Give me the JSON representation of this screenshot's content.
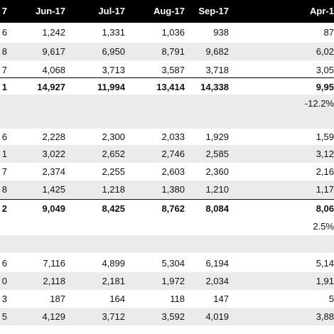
{
  "header": [
    "7",
    "Jun-17",
    "Jul-17",
    "Aug-17",
    "Sep-17",
    "Apr-1"
  ],
  "rows": [
    {
      "cells": [
        "6",
        "1,242",
        "1,331",
        "1,036",
        "938",
        "87"
      ]
    },
    {
      "cells": [
        "8",
        "9,617",
        "6,950",
        "8,791",
        "9,682",
        "6,02"
      ]
    },
    {
      "cells": [
        "7",
        "4,068",
        "3,713",
        "3,587",
        "3,718",
        "3,05"
      ]
    },
    {
      "cells": [
        "1",
        "14,927",
        "11,994",
        "13,414",
        "14,338",
        "9,95"
      ],
      "total": true
    },
    {
      "cells": [
        null,
        null,
        null,
        null,
        null,
        "-12.2%"
      ]
    },
    {
      "cells": [
        null,
        null,
        null,
        null,
        null,
        null
      ]
    },
    {
      "cells": [
        "6",
        "2,228",
        "2,300",
        "2,033",
        "1,929",
        "1,59"
      ]
    },
    {
      "cells": [
        "1",
        "3,022",
        "2,652",
        "2,746",
        "2,585",
        "3,12"
      ]
    },
    {
      "cells": [
        "7",
        "2,374",
        "2,255",
        "2,603",
        "2,360",
        "2,16"
      ]
    },
    {
      "cells": [
        "8",
        "1,425",
        "1,218",
        "1,380",
        "1,210",
        "1,17"
      ]
    },
    {
      "cells": [
        "2",
        "9,049",
        "8,425",
        "8,762",
        "8,084",
        "8,06"
      ],
      "total": true
    },
    {
      "cells": [
        null,
        null,
        null,
        null,
        null,
        "2.5%"
      ]
    },
    {
      "cells": [
        null,
        null,
        null,
        null,
        null,
        null
      ]
    },
    {
      "cells": [
        "6",
        "7,116",
        "4,899",
        "5,304",
        "6,194",
        "5,14"
      ]
    },
    {
      "cells": [
        "0",
        "2,118",
        "2,181",
        "1,972",
        "2,034",
        "1,91"
      ]
    },
    {
      "cells": [
        "3",
        "187",
        "164",
        "118",
        "147",
        "5"
      ]
    },
    {
      "cells": [
        "5",
        "4,129",
        "3,712",
        "3,592",
        "4,019",
        "3,88"
      ]
    }
  ]
}
